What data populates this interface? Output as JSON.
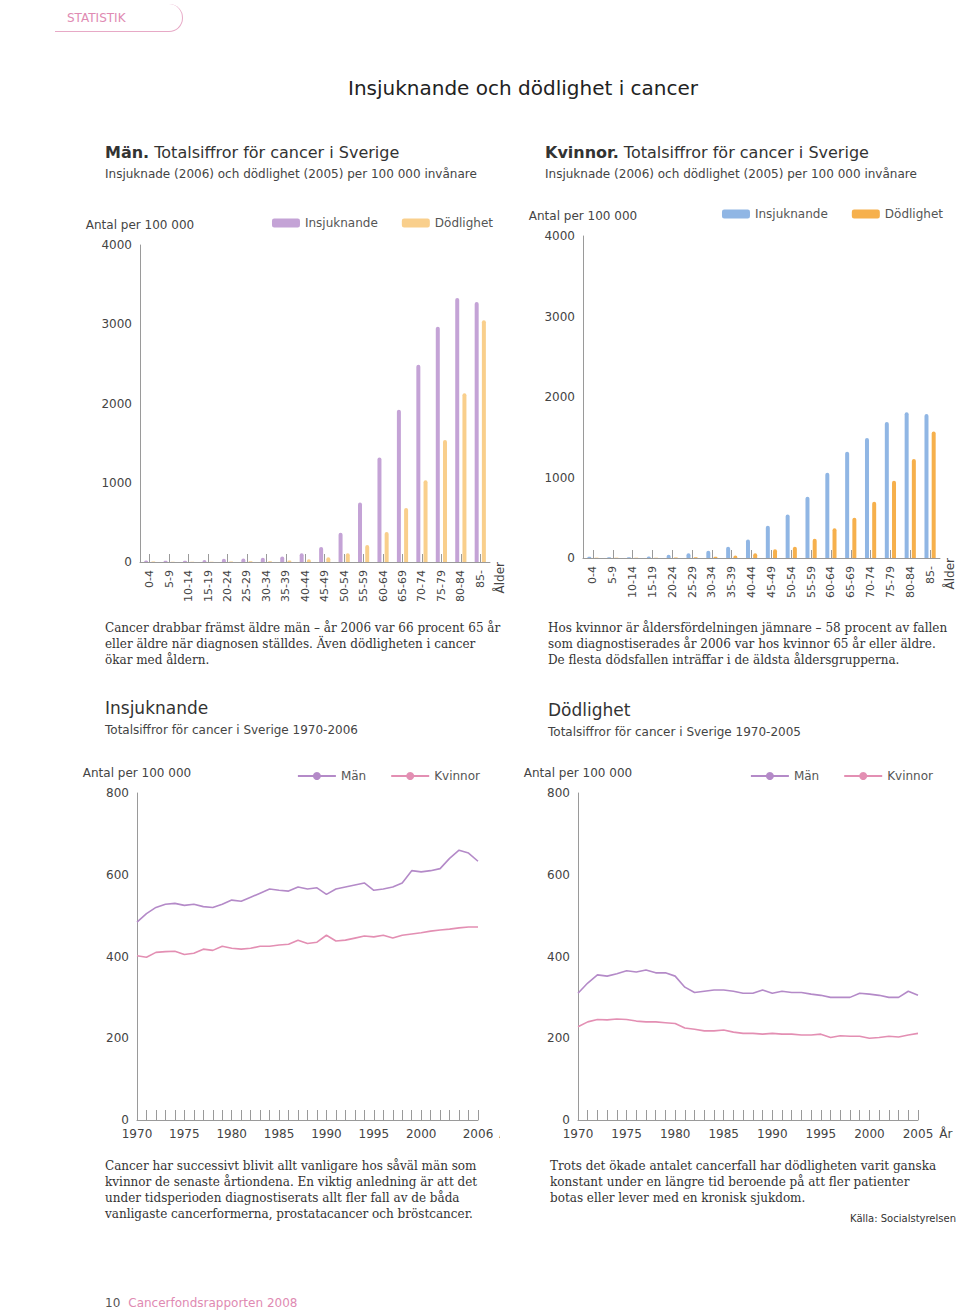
{
  "section": "STATISTIK",
  "title": "Insjuknande och dödlighet i cancer",
  "chart_data": [
    {
      "type": "bar",
      "title": "Män. Totalsiffror för cancer i Sverige",
      "subtitle": "Insjuknade (2006) och dödlighet (2005) per 100 000 invånare",
      "y_label": "Antal per 100 000",
      "x_label": "Ålder",
      "caption": "Cancer drabbar främst äldre män – år 2006 var 66 procent 65 år eller äldre när diagnosen ställdes. Även dödligheten i cancer ökar med åldern.",
      "categories": [
        "0-4",
        "5-9",
        "10-14",
        "15-19",
        "20-24",
        "25-29",
        "30-34",
        "35-39",
        "40-44",
        "45-49",
        "50-54",
        "55-59",
        "60-64",
        "65-69",
        "70-74",
        "75-79",
        "80-84",
        "85-"
      ],
      "series": [
        {
          "name": "Insjuknande",
          "color": "#c4a3d6",
          "values": [
            20,
            15,
            15,
            25,
            40,
            45,
            55,
            70,
            110,
            190,
            370,
            750,
            1320,
            1920,
            2490,
            2970,
            3330,
            3280
          ]
        },
        {
          "name": "Dödlighet",
          "color": "#f9cf8c",
          "values": [
            5,
            3,
            3,
            4,
            5,
            8,
            10,
            18,
            35,
            60,
            110,
            215,
            380,
            680,
            1030,
            1540,
            2130,
            3050
          ]
        }
      ],
      "ylim": [
        0,
        4000
      ],
      "yticks": [
        0,
        1000,
        2000,
        3000,
        4000
      ],
      "grid": false,
      "legend": "top right"
    },
    {
      "type": "bar",
      "title": "Kvinnor. Totalsiffror för cancer i Sverige",
      "subtitle": "Insjuknade (2006) och dödlighet (2005) per 100 000 invånare",
      "y_label": "Antal per 100 000",
      "x_label": "Ålder",
      "caption": "Hos kvinnor är åldersfördelningen jämnare – 58 procent av fallen som diagnostiserades år 2006 var hos kvinnor 65 år eller äldre. De flesta dödsfallen inträffar i de äldsta åldersgrupperna.",
      "categories": [
        "0-4",
        "5-9",
        "10-14",
        "15-19",
        "20-24",
        "25-29",
        "30-34",
        "35-39",
        "40-44",
        "45-49",
        "50-54",
        "55-59",
        "60-64",
        "65-69",
        "70-74",
        "75-79",
        "80-84",
        "85-"
      ],
      "series": [
        {
          "name": "Insjuknande",
          "color": "#90b6e4",
          "values": [
            15,
            10,
            10,
            20,
            40,
            60,
            90,
            140,
            230,
            400,
            540,
            760,
            1060,
            1320,
            1490,
            1690,
            1810,
            1790
          ]
        },
        {
          "name": "Dödlighet",
          "color": "#f6b04c",
          "values": [
            3,
            2,
            2,
            3,
            5,
            10,
            15,
            30,
            60,
            110,
            140,
            240,
            370,
            500,
            700,
            960,
            1230,
            1570
          ]
        }
      ],
      "ylim": [
        0,
        4000
      ],
      "yticks": [
        0,
        1000,
        2000,
        3000,
        4000
      ],
      "grid": false,
      "legend": "top right"
    },
    {
      "type": "line",
      "title": "Insjuknande",
      "subtitle": "Totalsiffror för cancer i Sverige 1970-2006",
      "y_label": "Antal per 100 000",
      "x_label": "År",
      "caption": "Cancer har successivt blivit allt vanligare hos såväl män som kvinnor de senaste årtiondena. En viktig anledning är att det under tidsperioden diagnostiserats allt fler fall av de båda vanligaste cancerformerna, prostatacancer och bröstcancer.",
      "x": [
        1970,
        1971,
        1972,
        1973,
        1974,
        1975,
        1976,
        1977,
        1978,
        1979,
        1980,
        1981,
        1982,
        1983,
        1984,
        1985,
        1986,
        1987,
        1988,
        1989,
        1990,
        1991,
        1992,
        1993,
        1994,
        1995,
        1996,
        1997,
        1998,
        1999,
        2000,
        2001,
        2002,
        2003,
        2004,
        2005,
        2006
      ],
      "series": [
        {
          "name": "Män",
          "color": "#b48ac8",
          "values": [
            484,
            505,
            520,
            528,
            530,
            525,
            528,
            522,
            520,
            528,
            538,
            535,
            545,
            555,
            565,
            562,
            560,
            570,
            565,
            568,
            552,
            565,
            570,
            575,
            580,
            562,
            565,
            570,
            580,
            610,
            607,
            610,
            615,
            640,
            660,
            653,
            633
          ]
        },
        {
          "name": "Kvinnor",
          "color": "#e38fb3",
          "values": [
            402,
            398,
            410,
            412,
            413,
            405,
            408,
            418,
            415,
            425,
            420,
            418,
            420,
            425,
            425,
            428,
            430,
            440,
            432,
            435,
            452,
            438,
            440,
            445,
            450,
            448,
            452,
            445,
            452,
            455,
            458,
            462,
            465,
            467,
            470,
            472,
            472
          ]
        }
      ],
      "xlim": [
        1970,
        2006
      ],
      "xticks": [
        1970,
        1975,
        1980,
        1985,
        1990,
        1995,
        2000,
        2006
      ],
      "ylim": [
        0,
        800
      ],
      "yticks": [
        0,
        200,
        400,
        600,
        800
      ],
      "grid": false,
      "legend": "top right"
    },
    {
      "type": "line",
      "title": "Dödlighet",
      "subtitle": "Totalsiffror för cancer i Sverige 1970-2005",
      "y_label": "Antal per 100 000",
      "x_label": "År",
      "caption": "Trots det ökade antalet cancerfall har dödligheten varit ganska konstant under en längre tid beroende på att fler patienter botas eller lever med en kronisk sjukdom.",
      "x": [
        1970,
        1971,
        1972,
        1973,
        1974,
        1975,
        1976,
        1977,
        1978,
        1979,
        1980,
        1981,
        1982,
        1983,
        1984,
        1985,
        1986,
        1987,
        1988,
        1989,
        1990,
        1991,
        1992,
        1993,
        1994,
        1995,
        1996,
        1997,
        1998,
        1999,
        2000,
        2001,
        2002,
        2003,
        2004,
        2005
      ],
      "series": [
        {
          "name": "Män",
          "color": "#b48ac8",
          "values": [
            310,
            335,
            355,
            352,
            358,
            365,
            362,
            367,
            360,
            360,
            352,
            325,
            312,
            315,
            318,
            318,
            315,
            310,
            310,
            318,
            310,
            315,
            312,
            312,
            308,
            305,
            300,
            300,
            300,
            310,
            308,
            305,
            300,
            300,
            315,
            305
          ]
        },
        {
          "name": "Kvinnor",
          "color": "#e38fb3",
          "values": [
            228,
            240,
            246,
            245,
            247,
            246,
            242,
            240,
            240,
            238,
            236,
            225,
            222,
            218,
            218,
            220,
            215,
            212,
            212,
            210,
            212,
            210,
            210,
            208,
            208,
            210,
            202,
            206,
            205,
            205,
            200,
            202,
            205,
            203,
            208,
            212
          ]
        }
      ],
      "xlim": [
        1970,
        2005
      ],
      "xticks": [
        1970,
        1975,
        1980,
        1985,
        1990,
        1995,
        2000,
        2005
      ],
      "ylim": [
        0,
        800
      ],
      "yticks": [
        0,
        200,
        400,
        600,
        800
      ],
      "grid": false,
      "legend": "top right"
    }
  ],
  "source": "Källa: Socialstyrelsen",
  "footer": {
    "page": "10",
    "publication": "Cancerfondsrapporten 2008"
  }
}
